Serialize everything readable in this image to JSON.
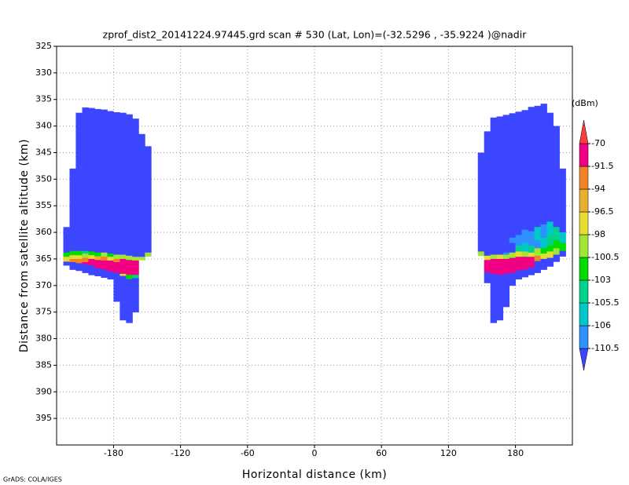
{
  "chart_data": {
    "type": "heatmap",
    "title": "zprof_dist2_20141224.97445.grd  scan # 530  (Lat, Lon)=(-32.5296 , -35.9224 )@nadir",
    "xlabel": "Horizontal distance (km)",
    "ylabel": "Distance from satellite altitude (km)",
    "footer": "GrADS: COLA/IGES",
    "xlim": [
      -231,
      231
    ],
    "ylim": [
      400,
      325
    ],
    "xticks": [
      -180,
      -120,
      -60,
      0,
      60,
      120,
      180
    ],
    "yticks": [
      325,
      330,
      335,
      340,
      345,
      350,
      355,
      360,
      365,
      370,
      375,
      380,
      385,
      390,
      395
    ],
    "grid": true,
    "colorbar": {
      "label": "(dBm)",
      "levels": [
        -110.5,
        -106,
        -105.5,
        -103,
        -100.5,
        -98,
        -96.5,
        -94,
        -91.5,
        -70
      ],
      "colors": [
        "#3c46ff",
        "#2d91ff",
        "#00c8c8",
        "#00d28c",
        "#00dc00",
        "#a0e632",
        "#e6dc32",
        "#e6af2d",
        "#f08228",
        "#f00082",
        "#fa3c3c"
      ]
    },
    "columns": [
      {
        "x": [
          -225,
          -219.4
        ],
        "segments": [
          [
            359,
            363.8,
            -115
          ],
          [
            363.8,
            364.6,
            -102
          ],
          [
            364.6,
            365.5,
            -97
          ],
          [
            365.5,
            366.2,
            -115
          ]
        ]
      },
      {
        "x": [
          -219.4,
          -213.8
        ],
        "segments": [
          [
            348,
            363.5,
            -115
          ],
          [
            363.5,
            364.3,
            -102
          ],
          [
            364.3,
            365,
            -97
          ],
          [
            365,
            365.6,
            -93
          ],
          [
            365.6,
            367,
            -115
          ]
        ]
      },
      {
        "x": [
          -213.8,
          -208.1
        ],
        "segments": [
          [
            337.5,
            363.5,
            -115
          ],
          [
            363.5,
            364.3,
            -102
          ],
          [
            364.3,
            365,
            -97
          ],
          [
            365,
            365.8,
            -93
          ],
          [
            365.8,
            367.2,
            -115
          ]
        ]
      },
      {
        "x": [
          -208.1,
          -202.5
        ],
        "segments": [
          [
            336.5,
            363.5,
            -115
          ],
          [
            363.5,
            364,
            -104
          ],
          [
            364,
            364.8,
            -99
          ],
          [
            364.8,
            365.6,
            -93
          ],
          [
            365.6,
            366,
            -85
          ],
          [
            366,
            367.6,
            -115
          ]
        ]
      },
      {
        "x": [
          -202.5,
          -196.9
        ],
        "segments": [
          [
            336.6,
            363.6,
            -115
          ],
          [
            363.6,
            364.3,
            -102
          ],
          [
            364.3,
            365,
            -97
          ],
          [
            365,
            366.2,
            -85
          ],
          [
            366.2,
            368,
            -115
          ]
        ]
      },
      {
        "x": [
          -196.9,
          -191.3
        ],
        "segments": [
          [
            336.8,
            363.8,
            -115
          ],
          [
            363.8,
            364.5,
            -102
          ],
          [
            364.5,
            365.2,
            -95
          ],
          [
            365.2,
            366.8,
            -85
          ],
          [
            366.8,
            368.2,
            -115
          ]
        ]
      },
      {
        "x": [
          -191.3,
          -185.6
        ],
        "segments": [
          [
            336.9,
            363.8,
            -115
          ],
          [
            363.8,
            364.6,
            -99
          ],
          [
            364.6,
            365.3,
            -93
          ],
          [
            365.3,
            367,
            -85
          ],
          [
            367,
            368.5,
            -115
          ]
        ]
      },
      {
        "x": [
          -185.6,
          -180
        ],
        "segments": [
          [
            337.2,
            364,
            -115
          ],
          [
            364,
            364.6,
            -102
          ],
          [
            364.6,
            365.3,
            -97
          ],
          [
            365.3,
            367.4,
            -85
          ],
          [
            367.4,
            368.8,
            -115
          ]
        ]
      },
      {
        "x": [
          -180,
          -174.4
        ],
        "segments": [
          [
            337.4,
            364.2,
            -115
          ],
          [
            364.2,
            365,
            -99
          ],
          [
            365,
            365.6,
            -93
          ],
          [
            365.6,
            367.6,
            -85
          ],
          [
            367.6,
            373,
            -115
          ]
        ]
      },
      {
        "x": [
          -174.4,
          -168.8
        ],
        "segments": [
          [
            337.5,
            364.2,
            -115
          ],
          [
            364.2,
            365,
            -99
          ],
          [
            365,
            367.8,
            -85
          ],
          [
            367.8,
            368.2,
            -97
          ],
          [
            368.2,
            376.5,
            -115
          ]
        ]
      },
      {
        "x": [
          -168.8,
          -163.1
        ],
        "segments": [
          [
            337.8,
            364.4,
            -115
          ],
          [
            364.4,
            365.2,
            -99
          ],
          [
            365.2,
            368,
            -85
          ],
          [
            368,
            368.8,
            -102
          ],
          [
            368.8,
            377,
            -115
          ]
        ]
      },
      {
        "x": [
          -163.1,
          -157.5
        ],
        "segments": [
          [
            338.6,
            364.6,
            -115
          ],
          [
            364.6,
            365.3,
            -99
          ],
          [
            365.3,
            368,
            -85
          ],
          [
            368,
            368.6,
            -104
          ],
          [
            368.6,
            375,
            -115
          ]
        ]
      },
      {
        "x": [
          -157.5,
          -151.9
        ],
        "segments": [
          [
            341.5,
            364.6,
            -115
          ],
          [
            364.6,
            365.2,
            -99
          ]
        ]
      },
      {
        "x": [
          -151.9,
          -146.3
        ],
        "segments": [
          [
            343.8,
            363.8,
            -115
          ],
          [
            363.8,
            364.5,
            -99
          ]
        ]
      },
      {
        "x": [
          146.3,
          151.9
        ],
        "segments": [
          [
            345,
            363.6,
            -115
          ],
          [
            363.6,
            364.4,
            -99
          ]
        ]
      },
      {
        "x": [
          151.9,
          157.5
        ],
        "segments": [
          [
            341,
            364.4,
            -115
          ],
          [
            364.4,
            365.2,
            -97
          ],
          [
            365.2,
            367.5,
            -85
          ],
          [
            367.5,
            369.5,
            -115
          ]
        ]
      },
      {
        "x": [
          157.5,
          163.1
        ],
        "segments": [
          [
            338.4,
            364.2,
            -115
          ],
          [
            364.2,
            365,
            -99
          ],
          [
            365,
            367.8,
            -85
          ],
          [
            367.8,
            377,
            -115
          ]
        ]
      },
      {
        "x": [
          163.1,
          168.8
        ],
        "segments": [
          [
            338.2,
            364.2,
            -115
          ],
          [
            364.2,
            365,
            -97
          ],
          [
            365,
            368,
            -85
          ],
          [
            368,
            376.5,
            -115
          ]
        ]
      },
      {
        "x": [
          168.8,
          174.4
        ],
        "segments": [
          [
            337.9,
            363.8,
            -115
          ],
          [
            363.8,
            364.2,
            -108
          ],
          [
            364.2,
            365,
            -99
          ],
          [
            365,
            367.8,
            -85
          ],
          [
            367.8,
            374,
            -115
          ]
        ]
      },
      {
        "x": [
          174.4,
          180
        ],
        "segments": [
          [
            337.6,
            361,
            -115
          ],
          [
            361,
            362,
            -108
          ],
          [
            362,
            363.8,
            -115
          ],
          [
            363.8,
            364.8,
            -99
          ],
          [
            364.8,
            367.6,
            -85
          ],
          [
            367.6,
            370,
            -115
          ]
        ]
      },
      {
        "x": [
          180,
          185.6
        ],
        "segments": [
          [
            337.3,
            360.5,
            -115
          ],
          [
            360.5,
            362.5,
            -108
          ],
          [
            362.5,
            363.6,
            -104
          ],
          [
            363.6,
            364.6,
            -97
          ],
          [
            364.6,
            367.2,
            -85
          ],
          [
            367.2,
            368.8,
            -115
          ]
        ]
      },
      {
        "x": [
          185.6,
          191.3
        ],
        "segments": [
          [
            337,
            359.5,
            -115
          ],
          [
            359.5,
            362,
            -108
          ],
          [
            362,
            363.6,
            -105.8
          ],
          [
            363.6,
            364.6,
            -99
          ],
          [
            364.6,
            367,
            -85
          ],
          [
            367,
            368.4,
            -115
          ]
        ]
      },
      {
        "x": [
          191.3,
          196.9
        ],
        "segments": [
          [
            336.4,
            359.8,
            -115
          ],
          [
            359.8,
            362.5,
            -108
          ],
          [
            362.5,
            363.8,
            -104
          ],
          [
            363.8,
            364.6,
            -97
          ],
          [
            364.6,
            366.6,
            -85
          ],
          [
            366.6,
            368,
            -115
          ]
        ]
      },
      {
        "x": [
          196.9,
          202.5
        ],
        "segments": [
          [
            336.2,
            359,
            -115
          ],
          [
            359,
            361.5,
            -105.8
          ],
          [
            361.5,
            363,
            -108
          ],
          [
            363,
            364.4,
            -99
          ],
          [
            364.4,
            365.4,
            -93
          ],
          [
            365.4,
            367.6,
            -115
          ]
        ]
      },
      {
        "x": [
          202.5,
          208.1
        ],
        "segments": [
          [
            335.8,
            358.5,
            -115
          ],
          [
            358.5,
            361,
            -108
          ],
          [
            361,
            363,
            -105.8
          ],
          [
            363,
            364,
            -102
          ],
          [
            364,
            365,
            -97
          ],
          [
            365,
            367,
            -115
          ]
        ]
      },
      {
        "x": [
          208.1,
          213.8
        ],
        "segments": [
          [
            337.5,
            358,
            -115
          ],
          [
            358,
            360.5,
            -105.8
          ],
          [
            360.5,
            362.5,
            -104
          ],
          [
            362.5,
            363.6,
            -102
          ],
          [
            363.6,
            364.8,
            -97
          ],
          [
            364.8,
            366.4,
            -115
          ]
        ]
      },
      {
        "x": [
          213.8,
          219.4
        ],
        "segments": [
          [
            340,
            359,
            -115
          ],
          [
            359,
            361.5,
            -104
          ],
          [
            361.5,
            363,
            -102
          ],
          [
            363,
            364.2,
            -99
          ],
          [
            364.2,
            365.5,
            -115
          ]
        ]
      },
      {
        "x": [
          219.4,
          225
        ],
        "segments": [
          [
            348,
            360,
            -115
          ],
          [
            360,
            362,
            -105.8
          ],
          [
            362,
            363.5,
            -102
          ],
          [
            363.5,
            364.5,
            -115
          ]
        ]
      }
    ]
  }
}
